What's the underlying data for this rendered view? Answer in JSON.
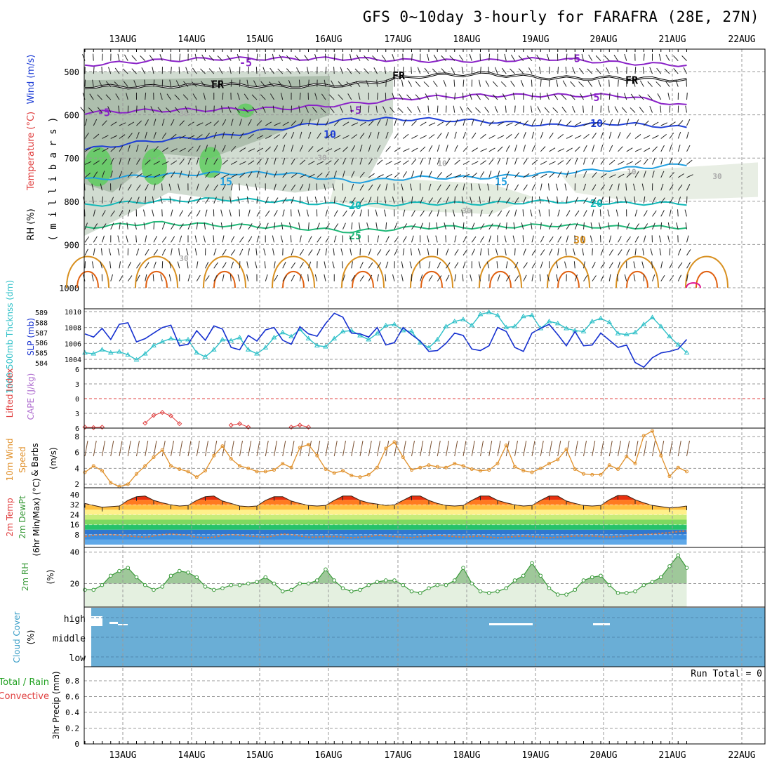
{
  "title": "GFS 0~10day 3-hourly for FARAFRA (28E, 27N)",
  "days": [
    "13AUG",
    "14AUG",
    "15AUG",
    "16AUG",
    "17AUG",
    "18AUG",
    "19AUG",
    "20AUG",
    "21AUG",
    "22AUG"
  ],
  "colors": {
    "grid": "#9a9a9a",
    "purple": "#8a22c8",
    "blue": "#1f3fd6",
    "lightblue": "#1f9fe0",
    "teal": "#12b8b8",
    "green": "#20b878",
    "orange": "#d89020",
    "rh_fill": "#5fcc5f",
    "cloud": "#6aaed6",
    "wind_orange": "#e0902a",
    "slp": "#1530d0",
    "thick": "#2ec0c8",
    "rh2m": "#3a9a3a",
    "li_red": "#e04040"
  },
  "panels": {
    "upper": {
      "ylabel_wind": "Wind (m/s)",
      "ylabel_temp": "Temperature (°C)",
      "ylabel_rh": "RH (%)",
      "ylabel_mb": "( m i l l i b a r s )",
      "pressure_ticks": [
        "500",
        "600",
        "700",
        "800",
        "900",
        "1000"
      ],
      "contour_labels": [
        "-5",
        "-5",
        "-5",
        "-5",
        "FR",
        "FR",
        "FR",
        "5",
        "10",
        "10",
        "15",
        "15",
        "20",
        "20",
        "25",
        "30",
        "10",
        "10",
        "30",
        "30",
        "30",
        "30",
        "30"
      ],
      "temperature_isotherms": [
        {
          "label": "-5",
          "p": [
            485,
            475,
            470,
            470,
            470,
            475,
            475,
            470,
            480,
            485
          ]
        },
        {
          "label": "FR",
          "p": [
            535,
            535,
            530,
            535,
            530,
            510,
            505,
            515,
            515,
            520
          ]
        },
        {
          "label": "5",
          "p": [
            595,
            590,
            588,
            585,
            575,
            560,
            555,
            555,
            555,
            580
          ]
        },
        {
          "label": "10",
          "p": [
            680,
            660,
            650,
            630,
            610,
            610,
            615,
            625,
            620,
            630
          ]
        },
        {
          "label": "15",
          "p": [
            750,
            740,
            735,
            735,
            755,
            745,
            745,
            735,
            725,
            715
          ]
        },
        {
          "label": "20",
          "p": [
            810,
            800,
            795,
            800,
            810,
            805,
            805,
            800,
            805,
            805
          ]
        },
        {
          "label": "25",
          "p": [
            860,
            850,
            855,
            860,
            870,
            860,
            860,
            855,
            860,
            860
          ]
        }
      ]
    },
    "slp": {
      "ylabel_thick": "1000-500mb Thcknss (dm)",
      "ylabel_slp": "SLP (mb)",
      "thick_ticks": [
        "589",
        "588",
        "587",
        "586",
        "585",
        "584"
      ],
      "slp_ticks": [
        "1010",
        "1008",
        "1006",
        "1004"
      ],
      "slp_ylim": [
        1002.5,
        1010.5
      ],
      "slp_values": [
        1007.2,
        1006.8,
        1007.9,
        1006.5,
        1008.4,
        1008.6,
        1006.2,
        1006.6,
        1007.3,
        1008.0,
        1008.3,
        1005.7,
        1005.9,
        1007.6,
        1006.4,
        1008.2,
        1007.8,
        1005.5,
        1005.2,
        1007.0,
        1006.3,
        1007.7,
        1008.0,
        1006.4,
        1005.9,
        1008.1,
        1007.2,
        1006.9,
        1008.5,
        1009.8,
        1009.3,
        1007.3,
        1007.2,
        1006.8,
        1008.0,
        1005.8,
        1006.1,
        1008.0,
        1007.1,
        1006.3,
        1005.0,
        1005.1,
        1006.0,
        1007.3,
        1007.0,
        1005.3,
        1005.1,
        1005.7,
        1008.0,
        1007.5,
        1005.5,
        1005.0,
        1007.3,
        1007.9,
        1008.4,
        1007.1,
        1005.7,
        1007.5,
        1005.7,
        1005.8,
        1007.3,
        1006.4,
        1005.5,
        1005.8,
        1003.6,
        1003.0,
        1004.2,
        1004.8,
        1005.0,
        1005.3,
        1006.5
      ],
      "thick_values": [
        585.0,
        584.9,
        585.3,
        585.0,
        585.1,
        584.8,
        584.3,
        584.9,
        585.7,
        586.1,
        586.4,
        586.2,
        586.3,
        585.0,
        584.6,
        585.3,
        586.3,
        586.2,
        586.5,
        585.3,
        584.9,
        585.5,
        586.5,
        587.0,
        586.6,
        587.3,
        586.4,
        585.7,
        585.6,
        586.4,
        587.1,
        587.2,
        586.7,
        586.3,
        586.9,
        587.7,
        587.8,
        587.2,
        587.1,
        586.0,
        585.5,
        586.3,
        587.6,
        588.1,
        588.3,
        587.7,
        588.8,
        589.0,
        588.7,
        587.5,
        587.6,
        588.6,
        588.7,
        587.4,
        588.1,
        587.9,
        587.4,
        587.2,
        587.1,
        588.1,
        588.4,
        588.0,
        586.9,
        586.8,
        587.0,
        587.8,
        588.5,
        587.6,
        586.6,
        585.8,
        585.0
      ],
      "thick_ylim": [
        583.4,
        589.4
      ]
    },
    "cape": {
      "ylabel_li": "Lifted Index",
      "ylabel_cape": "CAPE (J/kg)",
      "li_ticks": [
        "6",
        "3",
        "0",
        "3",
        "6"
      ],
      "ylim": [
        6,
        -6
      ],
      "li_values": [
        5.8,
        5.9,
        5.8,
        null,
        null,
        null,
        null,
        5.0,
        3.4,
        2.8,
        3.5,
        5.1,
        null,
        null,
        null,
        null,
        null,
        5.4,
        5.1,
        5.8,
        null,
        null,
        null,
        null,
        5.8,
        5.4,
        5.8
      ]
    },
    "wind10": {
      "ylabel_a": "10m Wind",
      "ylabel_b": "Speed",
      "ylabel_c": "& Barbs",
      "ylabel_d": "(m/s)",
      "ticks": [
        "8",
        "6",
        "4",
        "2"
      ],
      "ylim": [
        1.5,
        9
      ],
      "values": [
        3.5,
        4.3,
        3.7,
        2.2,
        1.7,
        2.0,
        3.3,
        4.3,
        5.4,
        6.3,
        4.3,
        3.9,
        3.6,
        2.9,
        3.7,
        5.6,
        6.8,
        5.2,
        4.3,
        4.0,
        3.6,
        3.6,
        3.8,
        4.6,
        4.1,
        6.6,
        7.0,
        5.6,
        3.9,
        3.4,
        3.7,
        3.1,
        2.9,
        3.2,
        4.1,
        6.5,
        7.3,
        5.4,
        3.8,
        4.1,
        4.4,
        4.2,
        4.1,
        4.6,
        4.3,
        3.9,
        3.7,
        3.8,
        4.6,
        6.9,
        4.2,
        3.7,
        3.5,
        4.0,
        4.6,
        5.1,
        6.4,
        3.9,
        3.3,
        3.2,
        3.2,
        4.4,
        3.9,
        5.5,
        4.6,
        8.1,
        8.7,
        5.6,
        3.0,
        4.1,
        3.6
      ]
    },
    "temp2m": {
      "ylabel_a": "2m Temp",
      "ylabel_b": "2m DewPt",
      "ylabel_c": "(6hr Min/Max) (°C)",
      "ticks": [
        "40",
        "32",
        "24",
        "16",
        "8"
      ],
      "ylim": [
        0,
        44
      ],
      "temp_values": [
        33.0,
        31.5,
        30.0,
        30.5,
        31.0,
        35.5,
        38.5,
        39.0,
        35.5,
        33.5,
        32.0,
        31.0,
        31.5,
        35.5,
        38.5,
        39.0,
        35.0,
        33.0,
        31.0,
        30.5,
        31.0,
        35.5,
        38.5,
        38.5,
        35.0,
        33.0,
        31.5,
        31.0,
        31.5,
        35.5,
        39.0,
        39.0,
        35.5,
        33.5,
        32.5,
        31.5,
        32.0,
        35.5,
        39.0,
        39.0,
        35.5,
        33.0,
        31.5,
        31.0,
        31.5,
        35.5,
        39.0,
        39.0,
        35.5,
        33.5,
        32.0,
        31.0,
        31.5,
        35.5,
        39.0,
        39.0,
        35.0,
        33.0,
        31.5,
        31.0,
        31.5,
        36.0,
        39.5,
        39.5,
        36.0,
        33.5,
        31.5,
        30.5,
        29.5,
        30.0,
        31.0
      ],
      "dew_values": [
        6.5,
        7.5,
        8.0,
        8.0,
        7.5,
        7.0,
        6.5,
        6.0,
        7.0,
        8.0,
        8.5,
        8.0,
        7.5,
        6.0,
        5.5,
        6.0,
        7.5,
        8.0,
        7.5,
        7.0,
        6.5,
        6.0,
        7.0,
        8.5,
        8.0,
        7.0,
        6.0,
        6.0,
        6.5,
        6.5,
        6.0,
        5.5,
        6.0,
        6.5,
        7.5,
        7.0,
        6.5,
        6.0,
        5.5,
        6.5,
        7.0,
        7.5,
        7.0,
        6.5,
        6.0,
        6.5,
        7.0,
        6.0,
        5.5,
        6.0,
        6.5,
        7.0,
        6.5,
        6.0,
        5.5,
        6.0,
        6.5,
        7.0,
        7.0,
        7.0,
        6.5,
        6.0,
        6.5,
        7.0,
        7.5,
        8.0,
        8.5,
        9.0,
        9.5,
        10.5,
        11.0
      ]
    },
    "rh2m": {
      "ylabel_a": "2m RH",
      "ylabel_b": "(%)",
      "ticks": [
        "40",
        "20"
      ],
      "ylim": [
        5,
        43
      ],
      "values": [
        16,
        16,
        19,
        25,
        28,
        30,
        24,
        19,
        16,
        18,
        25,
        28,
        27,
        24,
        18,
        16,
        17,
        19,
        19,
        20,
        21,
        24,
        20,
        15,
        16,
        20,
        20,
        22,
        29,
        22,
        17,
        15,
        16,
        19,
        21,
        22,
        22,
        19,
        15,
        14,
        17,
        19,
        19,
        22,
        30,
        20,
        15,
        14,
        15,
        17,
        22,
        25,
        33,
        25,
        17,
        13,
        13,
        16,
        22,
        24,
        25,
        19,
        14,
        14,
        15,
        19,
        21,
        24,
        31,
        38,
        30
      ]
    },
    "cloud": {
      "ylabel_a": "Cloud Cover",
      "ylabel_b": "(%)",
      "levels": [
        "high",
        "middle",
        "low"
      ]
    },
    "precip": {
      "ylabel_a": "Total / Rain",
      "ylabel_b": "Convective",
      "ylabel_c": "3hr Precip (mm)",
      "ticks": [
        "0.8",
        "0.6",
        "0.4",
        "0.2",
        "0"
      ],
      "run_total": "Run Total = 0"
    }
  },
  "chart_data": {
    "type": "line",
    "title": "GFS 0~10day 3-hourly for FARAFRA (28E, 27N)",
    "categories": [
      "13AUG",
      "14AUG",
      "15AUG",
      "16AUG",
      "17AUG",
      "18AUG",
      "19AUG",
      "20AUG",
      "21AUG",
      "22AUG"
    ],
    "series": [
      {
        "name": "SLP (mb)",
        "ylim": [
          1002.5,
          1010.5
        ]
      },
      {
        "name": "1000-500mb Thcknss (dm)",
        "ylim": [
          583.4,
          589.4
        ]
      },
      {
        "name": "10m Wind Speed (m/s)",
        "ylim": [
          1.5,
          9
        ]
      },
      {
        "name": "2m Temp (°C)",
        "ylim": [
          0,
          44
        ]
      },
      {
        "name": "2m RH (%)",
        "ylim": [
          5,
          43
        ]
      },
      {
        "name": "3hr Precip (mm)",
        "values_note": "Run Total = 0",
        "ylim": [
          0,
          0.9
        ]
      }
    ]
  }
}
